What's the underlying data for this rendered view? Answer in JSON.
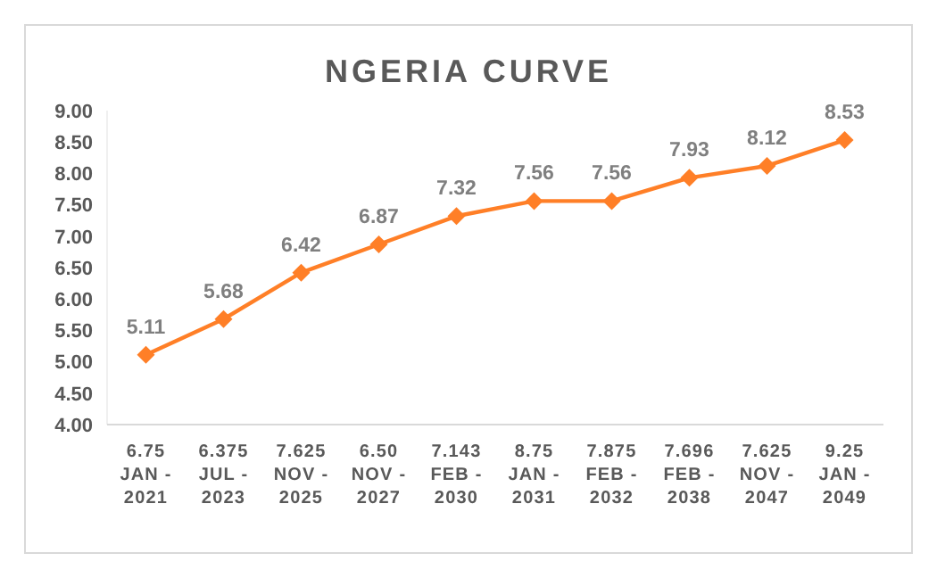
{
  "chart_data": {
    "type": "line",
    "title": "NGERIA CURVE",
    "categories": [
      "6.75\nJAN -\n2021",
      "6.375\nJUL -\n2023",
      "7.625\nNOV -\n2025",
      "6.50\nNOV -\n2027",
      "7.143\nFEB -\n2030",
      "8.75\nJAN -\n2031",
      "7.875\nFEB -\n2032",
      "7.696\nFEB -\n2038",
      "7.625\nNOV -\n2047",
      "9.25\nJAN -\n2049"
    ],
    "series": [
      {
        "color": "#ff7f27",
        "values": [
          5.11,
          5.68,
          6.42,
          6.87,
          7.32,
          7.56,
          7.56,
          7.93,
          8.12,
          8.53
        ]
      }
    ],
    "ylim": [
      4,
      9
    ],
    "yticks": [
      {
        "value": 4,
        "label": "4.00"
      },
      {
        "value": 4.5,
        "label": "4.50"
      },
      {
        "value": 5,
        "label": "5.00"
      },
      {
        "value": 5.5,
        "label": "5.50"
      },
      {
        "value": 6,
        "label": "6.00"
      },
      {
        "value": 6.5,
        "label": "6.50"
      },
      {
        "value": 7,
        "label": "7.00"
      },
      {
        "value": 7.5,
        "label": "7.50"
      },
      {
        "value": 8,
        "label": "8.00"
      },
      {
        "value": 8.5,
        "label": "8.50"
      },
      {
        "value": 9,
        "label": "9.00"
      }
    ],
    "grid": false,
    "marker": "diamond",
    "line_style": "solid",
    "data_labels": true
  }
}
